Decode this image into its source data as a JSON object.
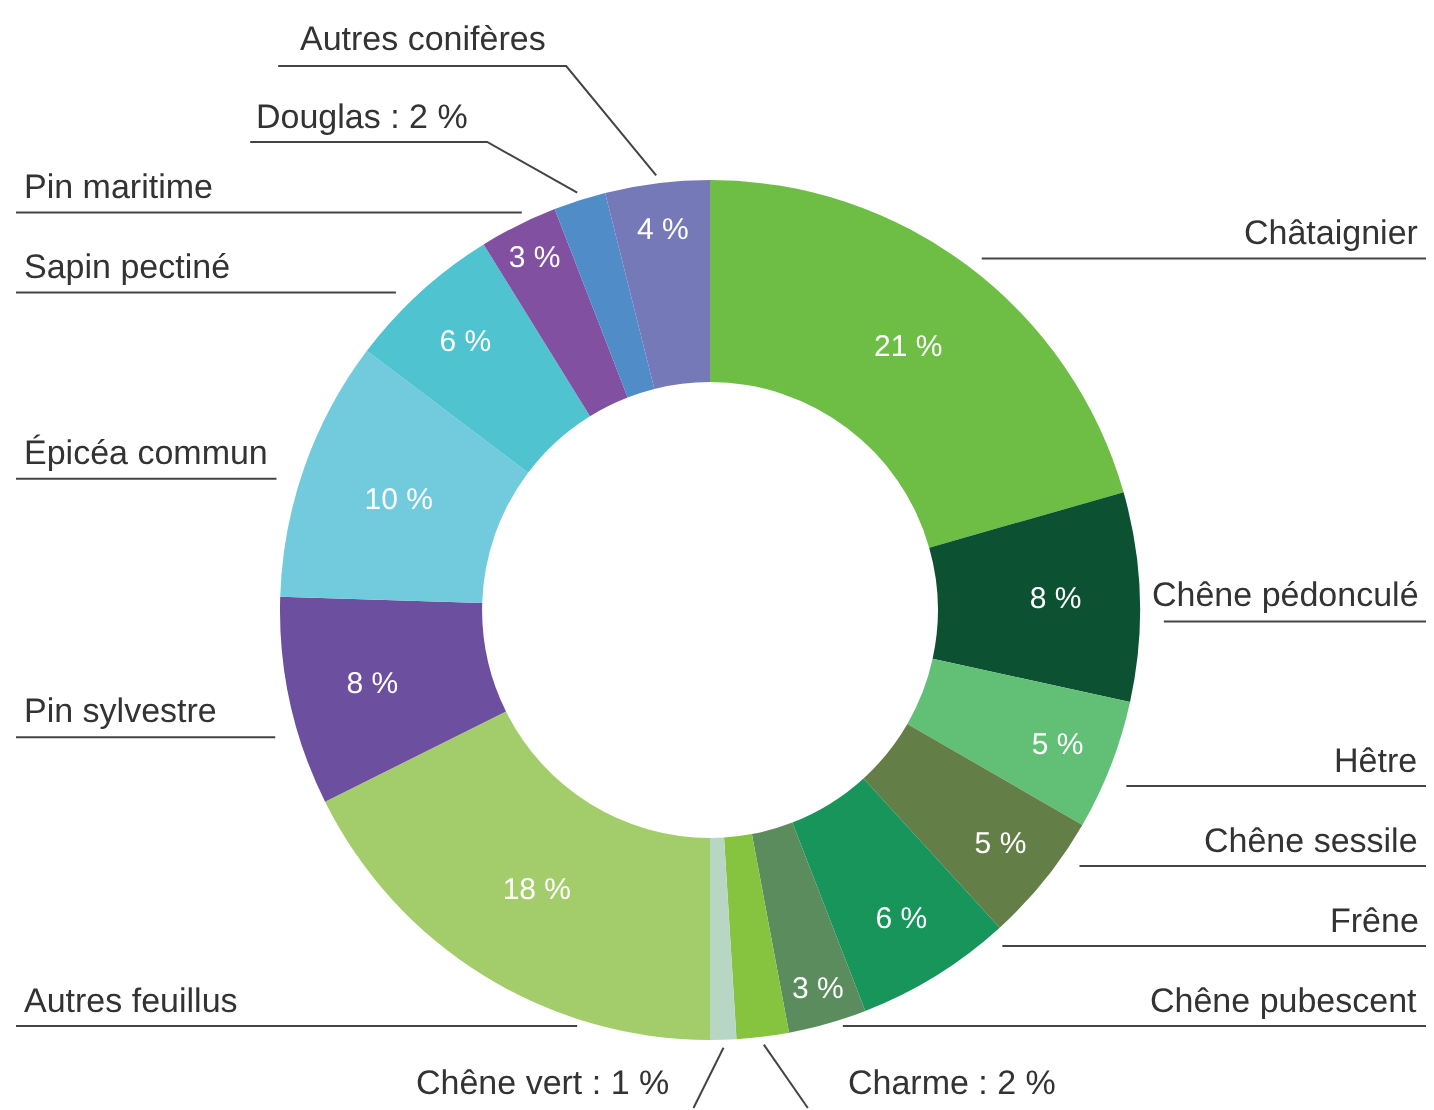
{
  "chart_data": {
    "type": "donut",
    "categories": [
      "Châtaignier",
      "Chêne pédonculé",
      "Hêtre",
      "Chêne sessile",
      "Frêne",
      "Chêne pubescent",
      "Charme : 2 %",
      "Chêne vert : 1 %",
      "Autres feuillus",
      "Pin sylvestre",
      "Épicéa commun",
      "Sapin pectiné",
      "Pin maritime",
      "Douglas : 2 %",
      "Autres conifères"
    ],
    "values": [
      21,
      8,
      5,
      5,
      6,
      3,
      2,
      1,
      18,
      8,
      10,
      6,
      3,
      2,
      4
    ],
    "value_labels": [
      "21 %",
      "8 %",
      "5 %",
      "5 %",
      "6 %",
      "3 %",
      null,
      null,
      "18 %",
      "8 %",
      "10 %",
      "6 %",
      "3 %",
      null,
      "4 %"
    ],
    "colors": [
      "#6ebe46",
      "#0d5133",
      "#61bf76",
      "#647e48",
      "#17955a",
      "#5a8c5e",
      "#86c440",
      "#b7d7c4",
      "#a3cd6a",
      "#6c4f9f",
      "#72cbdc",
      "#4fc3cf",
      "#8150a0",
      "#508cc8",
      "#7679b8"
    ]
  }
}
